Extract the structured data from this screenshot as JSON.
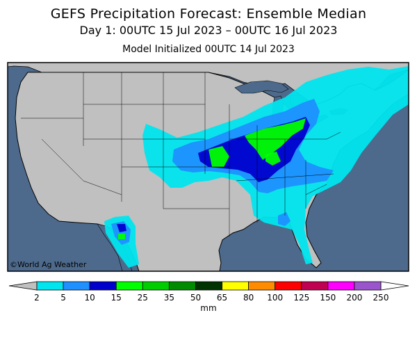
{
  "title": "GEFS Precipitation Forecast: Ensemble Median",
  "subtitle": "Day 1: 00UTC 15 Jul 2023 – 00UTC 16 Jul 2023",
  "init_line": "Model Initialized 00UTC 14 Jul 2023",
  "credit": "©World Ag Weather",
  "colors": {
    "ocean": "#4d6a8c",
    "land": "#c0c0c0",
    "border": "#000000"
  },
  "colorbar": {
    "units": "mm",
    "ticks": [
      "2",
      "5",
      "10",
      "15",
      "25",
      "35",
      "50",
      "65",
      "80",
      "100",
      "125",
      "150",
      "200",
      "250"
    ],
    "under_color": "#c0c0c0",
    "over_color": "#ffffff",
    "colors": [
      "#00e5ee",
      "#1e90ff",
      "#0000cd",
      "#00ff00",
      "#00cd00",
      "#008b00",
      "#003300",
      "#ffff00",
      "#ff8c00",
      "#ff0000",
      "#c00050",
      "#ff00ff",
      "#9a55cc"
    ]
  }
}
